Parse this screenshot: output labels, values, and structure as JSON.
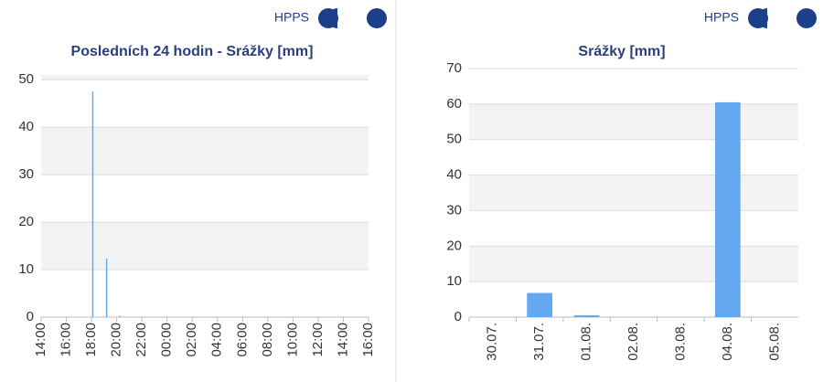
{
  "chart_data": [
    {
      "type": "bar",
      "logo_text": "HPPS",
      "title": "Posledních 24 hodin - Srážky [mm]",
      "x": [
        18.1,
        19.2,
        20.25
      ],
      "values": [
        47.5,
        12.3,
        0.3
      ],
      "color": "#64a8f0",
      "xlim": [
        14,
        40
      ],
      "xticks": [
        {
          "value": 14,
          "label": "14:00"
        },
        {
          "value": 16,
          "label": "16:00"
        },
        {
          "value": 18,
          "label": "18:00"
        },
        {
          "value": 20,
          "label": "20:00"
        },
        {
          "value": 22,
          "label": "22:00"
        },
        {
          "value": 24,
          "label": "00:00"
        },
        {
          "value": 26,
          "label": "02:00"
        },
        {
          "value": 28,
          "label": "04:00"
        },
        {
          "value": 30,
          "label": "06:00"
        },
        {
          "value": 32,
          "label": "08:00"
        },
        {
          "value": 34,
          "label": "10:00"
        },
        {
          "value": 36,
          "label": "12:00"
        },
        {
          "value": 38,
          "label": "14:00"
        },
        {
          "value": 40,
          "label": "16:00"
        }
      ],
      "ylim": [
        0,
        51
      ],
      "yticks": [
        0,
        10,
        20,
        30,
        40,
        50
      ],
      "grid": true
    },
    {
      "type": "bar",
      "logo_text": "HPPS",
      "title": "Srážky [mm]",
      "categories": [
        "30.07.",
        "31.07.",
        "01.08.",
        "02.08.",
        "03.08.",
        "04.08.",
        "05.08."
      ],
      "values": [
        0,
        6.8,
        0.5,
        0,
        0,
        60.5,
        0
      ],
      "color": "#64a8f0",
      "ylim": [
        0,
        70
      ],
      "yticks": [
        0,
        10,
        20,
        30,
        40,
        50,
        60,
        70
      ],
      "grid": true
    }
  ]
}
